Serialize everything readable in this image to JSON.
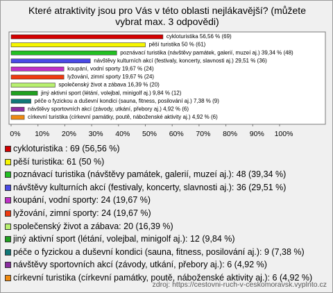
{
  "chart_data": {
    "type": "bar",
    "orientation": "horizontal",
    "title": "Které atraktivity jsou pro Vás v této oblasti nejlákavější? (můžete vybrat max. 3 odpovědi)",
    "values": [
      56.56,
      50,
      39.34,
      29.51,
      19.67,
      19.67,
      16.39,
      9.84,
      7.38,
      4.92,
      4.92
    ],
    "value_labels": [
      "cykloturistika 56,56 % (69)",
      "pěší turistika 50 % (61)",
      "poznávací turistika (návštěvy památek, galerií, muzeí aj.) 39,34 % (48)",
      "návštěvy kulturních akcí (festivaly, koncerty, slavnosti aj.) 29,51 % (36)",
      "koupání, vodní sporty 19,67 % (24)",
      "lyžování, zimní sporty 19,67 % (24)",
      "společenský život a zábava 16,39 % (20)",
      "jiný aktivní sport (létání, volejbal, minigolf aj.) 9,84 % (12)",
      "péče o fyzickou a duševní kondici (sauna, fitness, posilování aj.) 7,38 % (9)",
      "návštěvy sportovních akcí (závody, utkání, přebory aj.) 4,92 % (6)",
      "církevní turistika (církevní památky, poutě, náboženské aktivity aj.) 4,92 % (6)"
    ],
    "colors": [
      "#d40000",
      "#f6f600",
      "#22c022",
      "#4a4ae6",
      "#c030c8",
      "#f03a10",
      "#b8f070",
      "#20a020",
      "#107878",
      "#8a2ea0",
      "#f08a10"
    ],
    "legend_labels": [
      "cykloturistika : 69 (56,56 %)",
      "pěší turistika: 61 (50 %)",
      "poznávací turistika (návštěvy památek, galerií, muzeí aj.): 48 (39,34 %)",
      "návštěvy kulturních akcí (festivaly, koncerty, slavnosti aj.): 36 (29,51 %)",
      "koupání, vodní sporty: 24 (19,67 %)",
      "lyžování, zimní sporty: 24 (19,67 %)",
      "společenský život a zábava: 20 (16,39 %)",
      "jiný aktivní sport (létání, volejbal, minigolf aj.): 12 (9,84 %)",
      "péče o fyzickou a duševní kondici (sauna, fitness, posilování aj.): 9 (7,38 %)",
      "návštěvy sportovních akcí (závody, utkání, přebory aj.): 6 (4,92 %)",
      "církevní turistika (církevní památky, poutě, náboženské aktivity aj.): 6 (4,92 %)"
    ],
    "xlim": [
      0,
      100
    ],
    "xticks": [
      {
        "value": 0,
        "label": "0%"
      },
      {
        "value": 10,
        "label": "10%"
      },
      {
        "value": 20,
        "label": "20%"
      },
      {
        "value": 30,
        "label": "30%"
      },
      {
        "value": 40,
        "label": "40%"
      },
      {
        "value": 50,
        "label": "50%"
      },
      {
        "value": 60,
        "label": "60%"
      },
      {
        "value": 70,
        "label": "70%"
      },
      {
        "value": 80,
        "label": "80%"
      },
      {
        "value": 90,
        "label": "90%"
      },
      {
        "value": 100,
        "label": "100%"
      }
    ],
    "source": "zdroj: https://cestovni-ruch-v-ceskomoravsk.vyplnto.cz"
  }
}
